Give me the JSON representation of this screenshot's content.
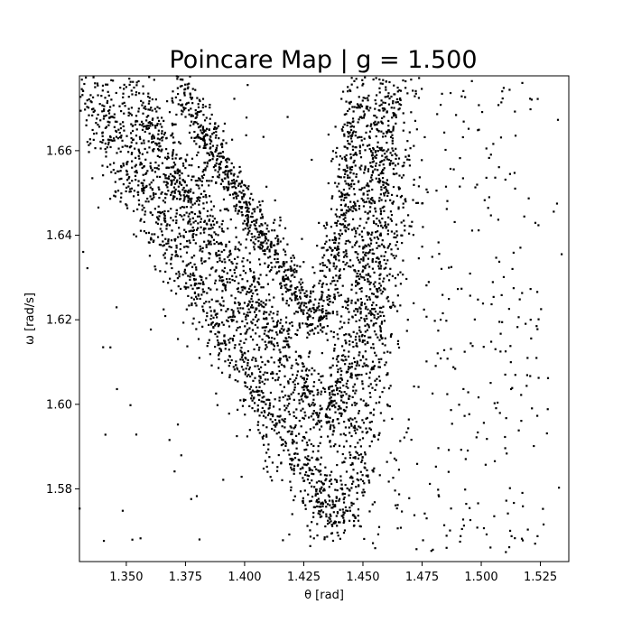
{
  "chart_data": {
    "type": "scatter",
    "title": "Poincare Map | g = 1.500",
    "xlabel": "θ [rad]",
    "ylabel": "ω [rad/s]",
    "xlim": [
      1.3302,
      1.537
    ],
    "ylim": [
      1.5628,
      1.6777
    ],
    "xticks": [
      1.35,
      1.375,
      1.4,
      1.425,
      1.45,
      1.475,
      1.5,
      1.525
    ],
    "xtick_labels": [
      "1.350",
      "1.375",
      "1.400",
      "1.425",
      "1.450",
      "1.475",
      "1.500",
      "1.525"
    ],
    "yticks": [
      1.58,
      1.6,
      1.62,
      1.64,
      1.66
    ],
    "ytick_labels": [
      "1.58",
      "1.60",
      "1.62",
      "1.64",
      "1.66"
    ],
    "grid": false,
    "marker_color": "#000000",
    "structure": {
      "description_points": "strange attractor: nested V/U-shaped bands",
      "bands": [
        {
          "left_top": [
            1.333,
            1.676
          ],
          "vertex": [
            1.44,
            1.572
          ],
          "right_top": [
            1.464,
            1.676
          ],
          "width": 0.01,
          "density": 1.0
        },
        {
          "left_top": [
            1.35,
            1.676
          ],
          "vertex": [
            1.435,
            1.596
          ],
          "right_top": [
            1.458,
            1.676
          ],
          "width": 0.008,
          "density": 0.8
        },
        {
          "left_top": [
            1.372,
            1.676
          ],
          "vertex": [
            1.43,
            1.619
          ],
          "right_top": [
            1.448,
            1.676
          ],
          "width": 0.006,
          "density": 0.6
        }
      ]
    }
  }
}
